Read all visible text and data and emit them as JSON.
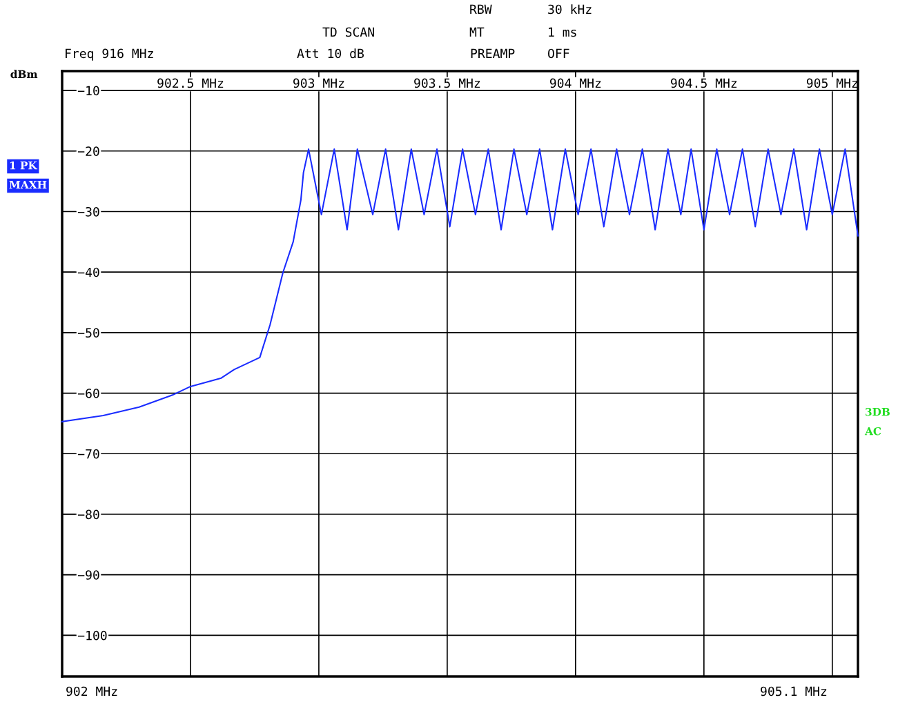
{
  "chart_data": {
    "type": "line",
    "ylabel": "dBm",
    "annotations": [
      "RBW",
      "30 kHz",
      "MT",
      "1 ms",
      "PREAMP",
      "OFF",
      "TD SCAN",
      "Att 10 dB",
      "Freq 916 MHz",
      "1 PK",
      "MAXH",
      "3DB",
      "AC",
      "902 MHz",
      "905.1 MHz"
    ],
    "xlim": [
      902,
      905.1
    ],
    "xticks": [
      {
        "value": 902.5,
        "label": "902.5 MHz"
      },
      {
        "value": 903,
        "label": "903 MHz"
      },
      {
        "value": 903.5,
        "label": "903.5 MHz"
      },
      {
        "value": 904,
        "label": "904 MHz"
      },
      {
        "value": 904.5,
        "label": "904.5 MHz"
      },
      {
        "value": 905,
        "label": "905 MHz"
      }
    ],
    "ylim": [
      -106.8,
      -6.8
    ],
    "yticks": [
      {
        "value": -10,
        "label": "−10"
      },
      {
        "value": -20,
        "label": "−20"
      },
      {
        "value": -30,
        "label": "−30"
      },
      {
        "value": -40,
        "label": "−40"
      },
      {
        "value": -50,
        "label": "−50"
      },
      {
        "value": -60,
        "label": "−60"
      },
      {
        "value": -70,
        "label": "−70"
      },
      {
        "value": -80,
        "label": "−80"
      },
      {
        "value": -90,
        "label": "−90"
      },
      {
        "value": -100,
        "label": "−100"
      }
    ],
    "grid": true,
    "line_style": "solid",
    "series": [
      {
        "color": "#1a2cff",
        "x": [
          902.0,
          902.16,
          902.3,
          902.43,
          902.5,
          902.62,
          902.67,
          902.77,
          902.81,
          902.86,
          902.9,
          902.93,
          902.94,
          902.96,
          903.01,
          903.06,
          903.11,
          903.15,
          903.21,
          903.26,
          903.31,
          903.36,
          903.41,
          903.46,
          903.51,
          903.56,
          903.61,
          903.66,
          903.71,
          903.76,
          903.81,
          903.86,
          903.91,
          903.96,
          904.01,
          904.06,
          904.11,
          904.16,
          904.21,
          904.26,
          904.31,
          904.36,
          904.41,
          904.45,
          904.5,
          904.55,
          904.6,
          904.65,
          904.7,
          904.75,
          904.8,
          904.85,
          904.9,
          904.95,
          905.0,
          905.05,
          905.1
        ],
        "values": [
          -64.7,
          -63.7,
          -62.3,
          -60.3,
          -58.9,
          -57.5,
          -56.1,
          -54.1,
          -48.7,
          -40.1,
          -35,
          -28.1,
          -23.6,
          -19.7,
          -30.5,
          -19.7,
          -33,
          -19.7,
          -30.5,
          -19.7,
          -33,
          -19.7,
          -30.5,
          -19.7,
          -32.5,
          -19.7,
          -30.5,
          -19.7,
          -33,
          -19.7,
          -30.5,
          -19.7,
          -33,
          -19.7,
          -30.5,
          -19.7,
          -32.5,
          -19.7,
          -30.5,
          -19.7,
          -33,
          -19.7,
          -30.5,
          -19.7,
          -33,
          -19.7,
          -30.5,
          -19.7,
          -32.5,
          -19.7,
          -30.5,
          -19.7,
          -33,
          -19.7,
          -30.5,
          -19.7,
          -34
        ]
      }
    ]
  }
}
